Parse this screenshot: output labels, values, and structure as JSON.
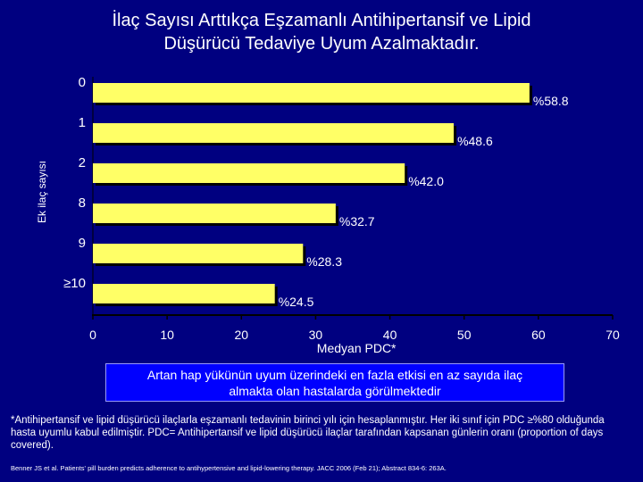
{
  "title": {
    "line1": "İlaç Sayısı Arttıkça Eşzamanlı Antihipertansif ve Lipid",
    "line2": "Düşürücü Tedaviye Uyum Azalmaktadır."
  },
  "chart_data": {
    "type": "bar",
    "orientation": "horizontal",
    "categories": [
      "0",
      "1",
      "2",
      "8",
      "9",
      "≥10"
    ],
    "values": [
      58.8,
      48.6,
      42.0,
      32.7,
      28.3,
      24.5
    ],
    "value_labels": [
      "%58.8",
      "%48.6",
      "%42.0",
      "%32.7",
      "%28.3",
      "%24.5"
    ],
    "xlabel": "Medyan PDC*",
    "ylabel": "Ek ilaç sayısı",
    "xlim": [
      0,
      70
    ],
    "xticks": [
      "0",
      "10",
      "20",
      "30",
      "40",
      "50",
      "60",
      "70"
    ],
    "bar_color": "#ffff66",
    "bar_shadow_color": "#000000"
  },
  "callout": {
    "line1": "Artan hap yükünün uyum üzerindeki en fazla etkisi en az sayıda ilaç",
    "line2": "almakta olan hastalarda görülmektedir"
  },
  "footnote": "*Antihipertansif ve lipid düşürücü ilaçlarla eşzamanlı tedavinin birinci yılı için hesaplanmıştır. Her iki sınıf için PDC ≥%80 olduğunda hasta uyumlu kabul edilmiştir. PDC= Antihipertansif ve lipid düşürücü ilaçlar tarafından kapsanan günlerin oranı (proportion of days covered).",
  "reference": "Benner JS et al. Patients' pill burden predicts adherence to antihypertensive and lipid-lowering therapy. JACC 2006 (Feb 21); Abstract 834-6: 263A.",
  "colors": {
    "background": "#000080",
    "callout_bg": "#0000ff",
    "text": "#ffffff"
  }
}
